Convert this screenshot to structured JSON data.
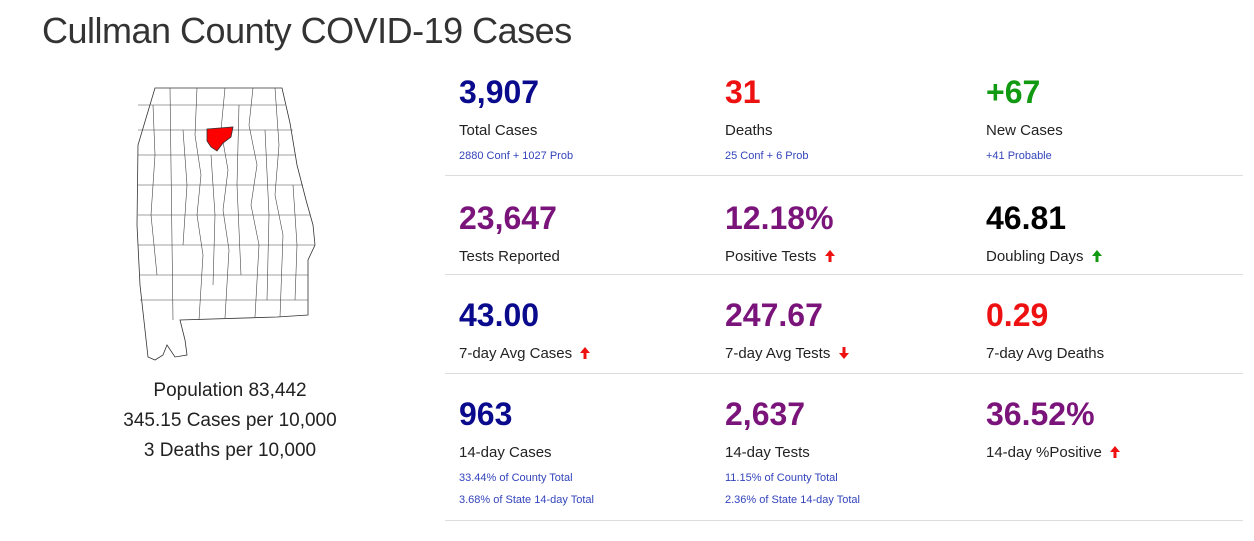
{
  "page": {
    "title": "Cullman County COVID-19 Cases"
  },
  "map": {
    "highlight_color": "#ff0000",
    "county_name": "Cullman"
  },
  "population": {
    "population_text": "Population 83,442",
    "cases_per_10k_text": "345.15 Cases per 10,000",
    "deaths_per_10k_text": "3 Deaths per 10,000"
  },
  "colors": {
    "navy": "#0a0a8c",
    "red": "#ee1111",
    "green": "#119911",
    "purple": "#7a147a",
    "black": "#000000",
    "link": "#3344bb"
  },
  "stats": {
    "total_cases": {
      "value": "3,907",
      "label": "Total Cases",
      "sub": "2880 Conf + 1027 Prob"
    },
    "deaths": {
      "value": "31",
      "label": "Deaths",
      "sub": "25 Conf + 6 Prob"
    },
    "new_cases": {
      "value": "+67",
      "label": "New Cases",
      "sub": "+41 Probable"
    },
    "tests_reported": {
      "value": "23,647",
      "label": "Tests Reported"
    },
    "positive_tests": {
      "value": "12.18%",
      "label": "Positive Tests",
      "trend": "up-red-arrow"
    },
    "doubling_days": {
      "value": "46.81",
      "label": "Doubling Days",
      "trend": "up-green-arrow"
    },
    "avg_cases_7day": {
      "value": "43.00",
      "label": "7-day Avg Cases",
      "trend": "up-red-arrow"
    },
    "avg_tests_7day": {
      "value": "247.67",
      "label": "7-day Avg Tests",
      "trend": "down-red-arrow"
    },
    "avg_deaths_7day": {
      "value": "0.29",
      "label": "7-day Avg Deaths"
    },
    "cases_14day": {
      "value": "963",
      "label": "14-day Cases",
      "sub1": "33.44% of County Total",
      "sub2": "3.68% of State 14-day Total"
    },
    "tests_14day": {
      "value": "2,637",
      "label": "14-day Tests",
      "sub1": "11.15% of County Total",
      "sub2": "2.36% of State 14-day Total"
    },
    "positive_14day": {
      "value": "36.52%",
      "label": "14-day %Positive",
      "trend": "up-red-arrow"
    }
  }
}
